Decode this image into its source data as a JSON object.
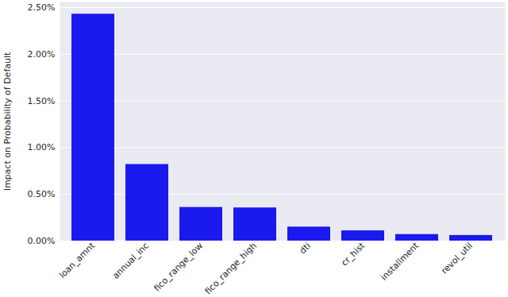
{
  "chart_data": {
    "type": "bar",
    "y_label": "Impact on Probability of Default",
    "categories": [
      "loan_amnt",
      "annual_inc",
      "fico_range_low",
      "fico_range_high",
      "dti",
      "cr_hist",
      "installment",
      "revol_util"
    ],
    "values": [
      2.43,
      0.82,
      0.36,
      0.355,
      0.15,
      0.11,
      0.07,
      0.06
    ],
    "color": "#1a1aee",
    "ylim": [
      0,
      2.56
    ],
    "yticks": [
      {
        "value": 0,
        "label": "0.00%"
      },
      {
        "value": 0.5,
        "label": "0.50%"
      },
      {
        "value": 1,
        "label": "1.00%"
      },
      {
        "value": 1.5,
        "label": "1.50%"
      },
      {
        "value": 2,
        "label": "2.00%"
      },
      {
        "value": 2.5,
        "label": "2.50%"
      }
    ],
    "grid": true
  }
}
